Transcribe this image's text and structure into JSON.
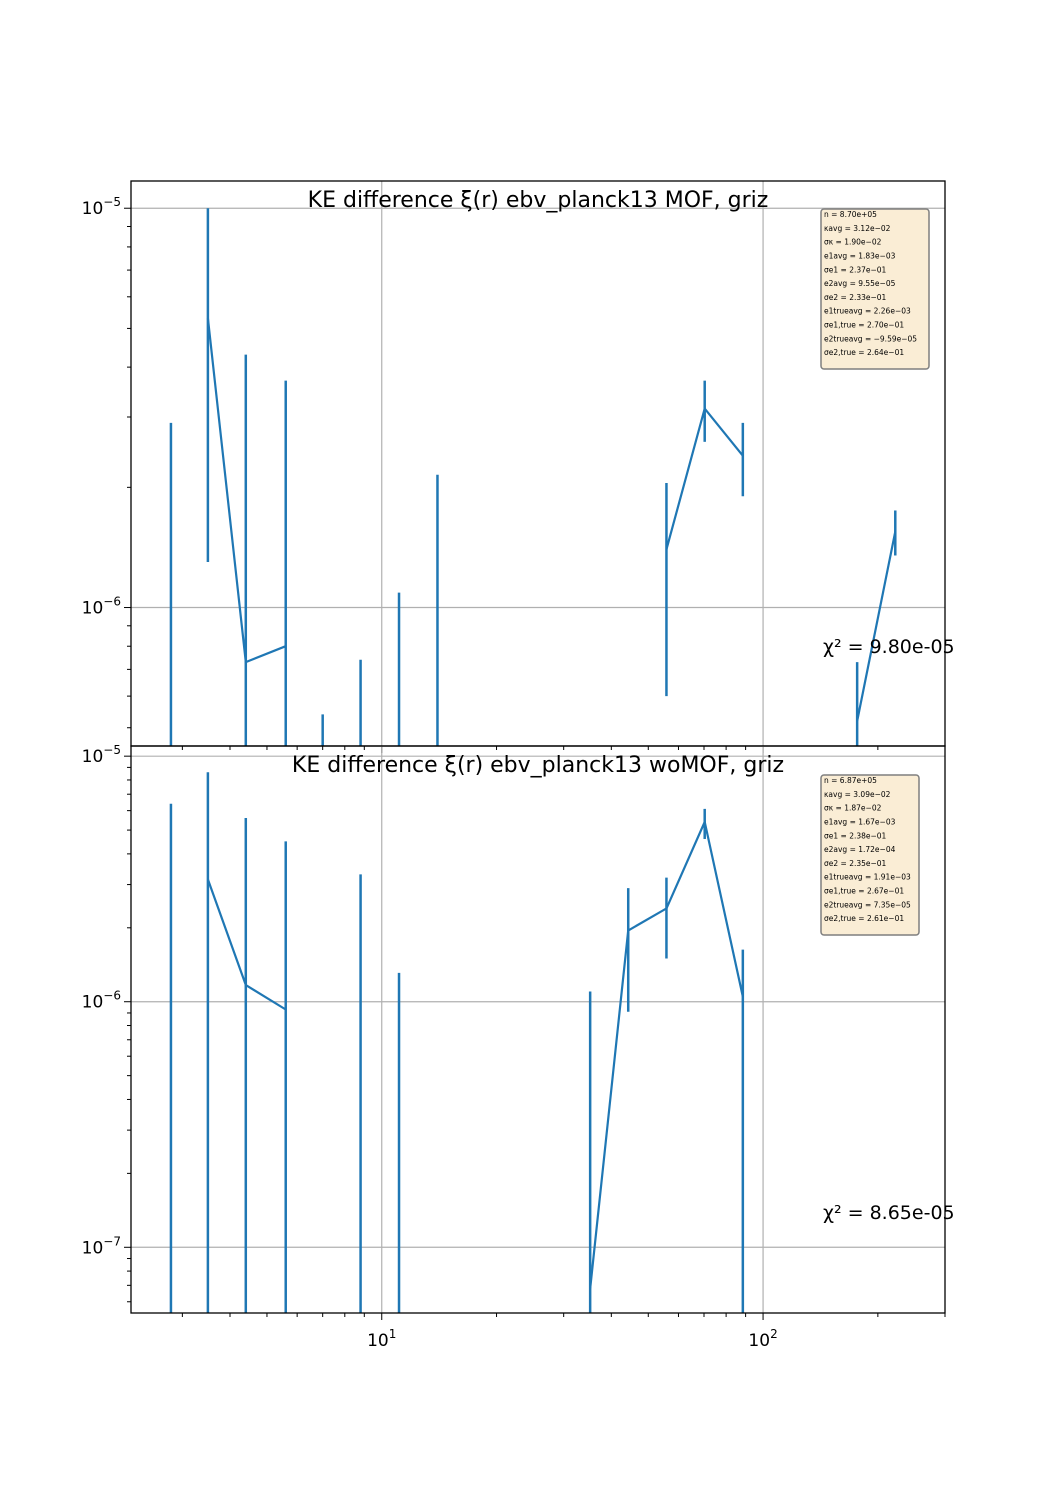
{
  "chart_data": [
    {
      "type": "line",
      "title": "KE difference ξ(r) ebv_planck13 MOF,  griz",
      "x_scale": "log",
      "y_scale": "log",
      "xlim": [
        2.2,
        300
      ],
      "ylim": [
        4.5e-07,
        1.17e-05
      ],
      "grid": true,
      "yticks": [
        {
          "value": 1e-06,
          "base": "10",
          "exp": "−6"
        },
        {
          "value": 1e-05,
          "base": "10",
          "exp": "−5"
        }
      ],
      "chi2_label": "χ² = 9.80e-05",
      "series": [
        {
          "points": [
            {
              "x": 3.5,
              "y": 5.3e-06
            },
            {
              "x": 4.4,
              "y": 7.3e-07
            },
            {
              "x": 5.6,
              "y": 8e-07
            }
          ],
          "errorbars": [
            {
              "x": 2.8,
              "lo": 1e-09,
              "hi": 2.9e-06
            },
            {
              "x": 3.5,
              "lo": 1.3e-06,
              "hi": 1e-05
            },
            {
              "x": 4.4,
              "lo": 1e-09,
              "hi": 4.3e-06
            },
            {
              "x": 5.6,
              "lo": 1e-09,
              "hi": 3.7e-06
            },
            {
              "x": 7.0,
              "lo": 1e-09,
              "hi": 5.4e-07
            },
            {
              "x": 8.8,
              "lo": 1e-09,
              "hi": 7.4e-07
            },
            {
              "x": 11.1,
              "lo": 1e-09,
              "hi": 1.09e-06
            },
            {
              "x": 14.0,
              "lo": 1e-09,
              "hi": 2.15e-06
            }
          ]
        },
        {
          "points": [
            {
              "x": 55.8,
              "y": 1.4e-06
            },
            {
              "x": 70.3,
              "y": 3.15e-06
            },
            {
              "x": 88.5,
              "y": 2.4e-06
            }
          ],
          "errorbars": [
            {
              "x": 55.8,
              "lo": 6e-07,
              "hi": 2.05e-06
            },
            {
              "x": 70.3,
              "lo": 2.6e-06,
              "hi": 3.7e-06
            },
            {
              "x": 88.5,
              "lo": 1.9e-06,
              "hi": 2.9e-06
            }
          ]
        },
        {
          "points": [
            {
              "x": 176.5,
              "y": 5.2e-07
            },
            {
              "x": 222.2,
              "y": 1.55e-06
            }
          ],
          "errorbars": [
            {
              "x": 176.5,
              "lo": 1e-09,
              "hi": 7.3e-07
            },
            {
              "x": 222.2,
              "lo": 1.35e-06,
              "hi": 1.75e-06
            }
          ]
        }
      ],
      "stats": [
        "n = 8.70e+05",
        "κavg = 3.12e−02",
        "σκ = 1.90e−02",
        "e1avg = 1.83e−03",
        "σe1 = 2.37e−01",
        "e2avg = 9.55e−05",
        "σe2 = 2.33e−01",
        "e1trueavg = 2.26e−03",
        "σe1,true = 2.70e−01",
        "e2trueavg = −9.59e−05",
        "σe2,true = 2.64e−01"
      ]
    },
    {
      "type": "line",
      "title": "KE difference ξ(r) ebv_planck13 woMOF,  griz",
      "x_scale": "log",
      "y_scale": "log",
      "xlim": [
        2.2,
        300
      ],
      "ylim": [
        5.4e-08,
        1.1e-05
      ],
      "grid": true,
      "xlabel": "",
      "xticks": [
        {
          "value": 10,
          "base": "10",
          "exp": "1"
        },
        {
          "value": 100,
          "base": "10",
          "exp": "2"
        }
      ],
      "yticks": [
        {
          "value": 1e-07,
          "base": "10",
          "exp": "−7"
        },
        {
          "value": 1e-06,
          "base": "10",
          "exp": "−6"
        },
        {
          "value": 1e-05,
          "base": "10",
          "exp": "−5"
        }
      ],
      "chi2_label": "χ² = 8.65e-05",
      "series": [
        {
          "points": [
            {
              "x": 3.5,
              "y": 3.15e-06
            },
            {
              "x": 4.4,
              "y": 1.17e-06
            },
            {
              "x": 5.6,
              "y": 9.3e-07
            }
          ],
          "errorbars": [
            {
              "x": 2.8,
              "lo": 1e-09,
              "hi": 6.4e-06
            },
            {
              "x": 3.5,
              "lo": 1e-09,
              "hi": 8.6e-06
            },
            {
              "x": 4.4,
              "lo": 1e-09,
              "hi": 5.6e-06
            },
            {
              "x": 5.6,
              "lo": 1e-09,
              "hi": 4.5e-06
            },
            {
              "x": 8.8,
              "lo": 1e-09,
              "hi": 3.3e-06
            },
            {
              "x": 11.1,
              "lo": 1e-09,
              "hi": 1.31e-06
            }
          ]
        },
        {
          "points": [
            {
              "x": 35.2,
              "y": 6.8e-08
            },
            {
              "x": 44.3,
              "y": 1.95e-06
            },
            {
              "x": 55.8,
              "y": 2.4e-06
            },
            {
              "x": 70.3,
              "y": 5.4e-06
            },
            {
              "x": 88.5,
              "y": 1.05e-06
            }
          ],
          "errorbars": [
            {
              "x": 35.2,
              "lo": 1e-09,
              "hi": 1.1e-06
            },
            {
              "x": 44.3,
              "lo": 9.1e-07,
              "hi": 2.9e-06
            },
            {
              "x": 55.8,
              "lo": 1.5e-06,
              "hi": 3.2e-06
            },
            {
              "x": 70.3,
              "lo": 4.6e-06,
              "hi": 6.1e-06
            },
            {
              "x": 88.5,
              "lo": 1e-09,
              "hi": 1.63e-06
            }
          ]
        }
      ],
      "stats": [
        "n = 6.87e+05",
        "κavg = 3.09e−02",
        "σκ = 1.87e−02",
        "e1avg = 1.67e−03",
        "σe1 = 2.38e−01",
        "e2avg = 1.72e−04",
        "σe2 = 2.35e−01",
        "e1trueavg = 1.91e−03",
        "σe1,true = 2.67e−01",
        "e2trueavg = 7.35e−05",
        "σe2,true = 2.61e−01"
      ]
    }
  ],
  "colors": {
    "series": "#1f77b4",
    "grid": "#b0b0b0",
    "stats_box_fill": "#f5deb3",
    "stats_box_edge": "#7f7f7f"
  }
}
